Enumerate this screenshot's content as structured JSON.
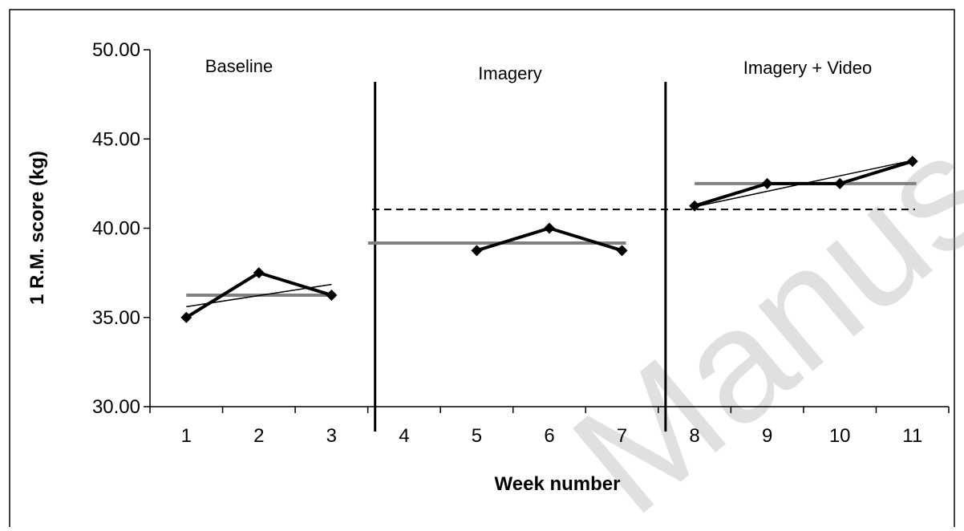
{
  "chart_data": {
    "type": "line",
    "xlabel": "Week number",
    "ylabel": "1 R.M. score (kg)",
    "x": [
      1,
      2,
      3,
      4,
      5,
      6,
      7,
      8,
      9,
      10,
      11
    ],
    "x_tick_labels": [
      "1",
      "2",
      "3",
      "4",
      "5",
      "6",
      "7",
      "8",
      "9",
      "10",
      "11"
    ],
    "ylim": [
      30,
      50
    ],
    "y_tick_labels": [
      "30.00",
      "35.00",
      "40.00",
      "45.00",
      "50.00"
    ],
    "y_ticks": [
      30,
      35,
      40,
      45,
      50
    ],
    "grid": false,
    "phases": [
      {
        "label": "Baseline",
        "weeks": [
          1,
          3
        ]
      },
      {
        "label": "Imagery",
        "weeks": [
          4,
          7
        ]
      },
      {
        "label": "Imagery + Video",
        "weeks": [
          8,
          11
        ]
      }
    ],
    "phase_dividers_x": [
      3.6,
      7.6
    ],
    "series": [
      {
        "segment": "baseline",
        "x": [
          1,
          2,
          3
        ],
        "values": [
          35.0,
          37.5,
          36.25
        ],
        "color": "#000000",
        "marker": "diamond"
      },
      {
        "segment": "imagery",
        "x": [
          5,
          6,
          7
        ],
        "values": [
          38.75,
          40.0,
          38.75
        ],
        "color": "#000000",
        "marker": "diamond"
      },
      {
        "segment": "imagery-video",
        "x": [
          8,
          9,
          10,
          11
        ],
        "values": [
          41.25,
          42.5,
          42.5,
          43.75
        ],
        "color": "#000000",
        "marker": "diamond"
      }
    ],
    "phase_means": [
      {
        "x": [
          1,
          3
        ],
        "y": 36.25,
        "color": "#808080"
      },
      {
        "x": [
          4,
          7
        ],
        "y": 39.17,
        "color": "#808080"
      },
      {
        "x": [
          8,
          11
        ],
        "y": 42.5,
        "color": "#808080"
      }
    ],
    "trend_lines": [
      {
        "x": [
          1,
          3
        ],
        "y": [
          35.6,
          36.85
        ],
        "color": "#000000"
      },
      {
        "x": [
          8,
          11
        ],
        "y": [
          41.2,
          43.8
        ],
        "color": "#000000"
      }
    ],
    "reference_line": {
      "x": [
        4,
        11
      ],
      "y": 41.05,
      "style": "dashed",
      "color": "#000000"
    },
    "watermark": "Manuscript"
  }
}
